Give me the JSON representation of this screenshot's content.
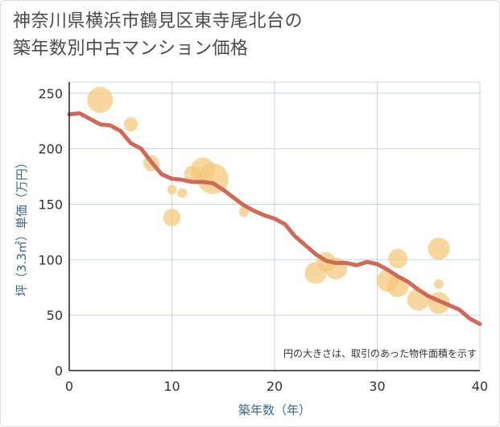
{
  "title_line1": "神奈川県横浜市鶴見区東寺尾北台の",
  "title_line2": "築年数別中古マンション価格",
  "chart_data": {
    "type": "scatter",
    "title": "神奈川県横浜市鶴見区東寺尾北台の築年数別中古マンション価格",
    "xlabel": "築年数（年）",
    "ylabel": "坪（3.3㎡）単価（万円）",
    "xlim": [
      0,
      40
    ],
    "ylim": [
      0,
      260
    ],
    "xticks": [
      0,
      10,
      20,
      30,
      40
    ],
    "yticks": [
      0,
      50,
      100,
      150,
      200,
      250
    ],
    "grid": true,
    "note": "円の大きさは、取引のあった物件面積を示す",
    "bubble_color": "#f5c87a",
    "line_color": "#d06a58",
    "points": [
      {
        "x": 3,
        "y": 244,
        "size": 3
      },
      {
        "x": 6,
        "y": 222,
        "size": 1.2
      },
      {
        "x": 8,
        "y": 187,
        "size": 1.5
      },
      {
        "x": 10,
        "y": 163,
        "size": 0.5
      },
      {
        "x": 10,
        "y": 138,
        "size": 1.7
      },
      {
        "x": 11,
        "y": 160,
        "size": 0.5
      },
      {
        "x": 12,
        "y": 177,
        "size": 1.6
      },
      {
        "x": 13,
        "y": 181,
        "size": 2.8
      },
      {
        "x": 14,
        "y": 173,
        "size": 3.8
      },
      {
        "x": 17,
        "y": 143,
        "size": 0.5
      },
      {
        "x": 24,
        "y": 88,
        "size": 2.4
      },
      {
        "x": 25,
        "y": 98,
        "size": 2.0
      },
      {
        "x": 26,
        "y": 92,
        "size": 2.4
      },
      {
        "x": 31,
        "y": 81,
        "size": 2.4
      },
      {
        "x": 32,
        "y": 101,
        "size": 2.0
      },
      {
        "x": 32,
        "y": 76,
        "size": 2.4
      },
      {
        "x": 34,
        "y": 64,
        "size": 2.4
      },
      {
        "x": 36,
        "y": 110,
        "size": 2.4
      },
      {
        "x": 36,
        "y": 78,
        "size": 0.5
      },
      {
        "x": 36,
        "y": 61,
        "size": 2.4
      }
    ],
    "trend": {
      "x": [
        0,
        1,
        2,
        3,
        4,
        5,
        6,
        7,
        8,
        9,
        10,
        11,
        12,
        13,
        14,
        15,
        16,
        17,
        18,
        19,
        20,
        21,
        22,
        23,
        24,
        25,
        26,
        27,
        28,
        29,
        30,
        31,
        32,
        33,
        34,
        35,
        36,
        37,
        38,
        39,
        40
      ],
      "y": [
        231,
        232,
        227,
        222,
        221,
        216,
        205,
        200,
        188,
        177,
        173,
        172,
        170,
        170,
        169,
        163,
        156,
        149,
        144,
        140,
        137,
        132,
        121,
        113,
        105,
        99,
        97,
        97,
        95,
        98,
        96,
        91,
        85,
        80,
        73,
        67,
        63,
        59,
        55,
        47,
        42
      ]
    }
  }
}
